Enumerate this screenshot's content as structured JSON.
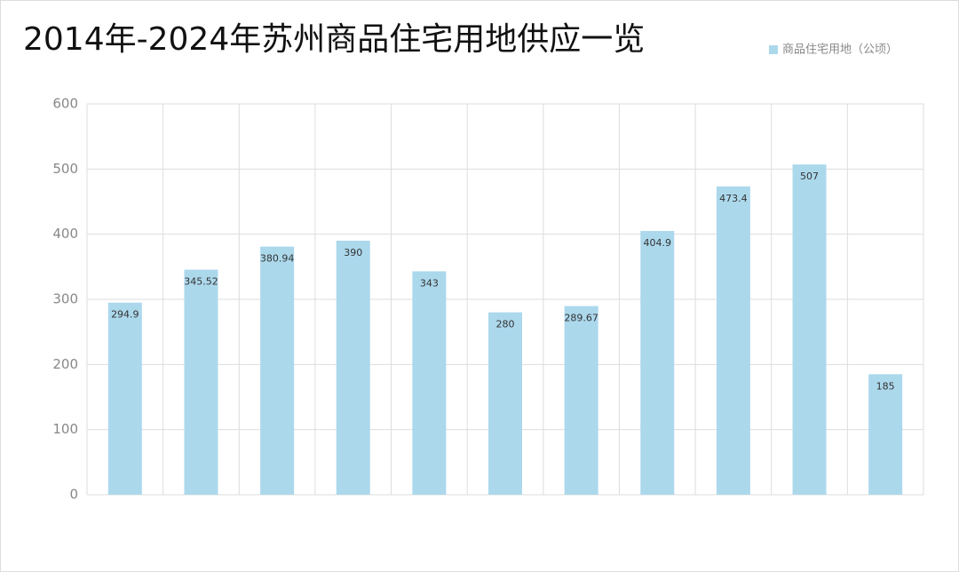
{
  "chart_data": {
    "type": "bar",
    "title": "2014年-2024年苏州商品住宅用地供应一览",
    "categories": [
      null,
      null,
      null,
      null,
      null,
      null,
      null,
      null,
      null,
      null,
      null
    ],
    "series": [
      {
        "name": "商品住宅用地（公顷）",
        "color": "#acd8ec",
        "values": [
          294.9,
          345.52,
          380.94,
          390,
          343,
          280,
          289.67,
          404.9,
          473.4,
          507,
          185
        ]
      }
    ],
    "ylim": [
      0,
      600
    ],
    "yticks": [
      0,
      100,
      200,
      300,
      400,
      500,
      600
    ],
    "grid": true,
    "legend": "top-right"
  }
}
